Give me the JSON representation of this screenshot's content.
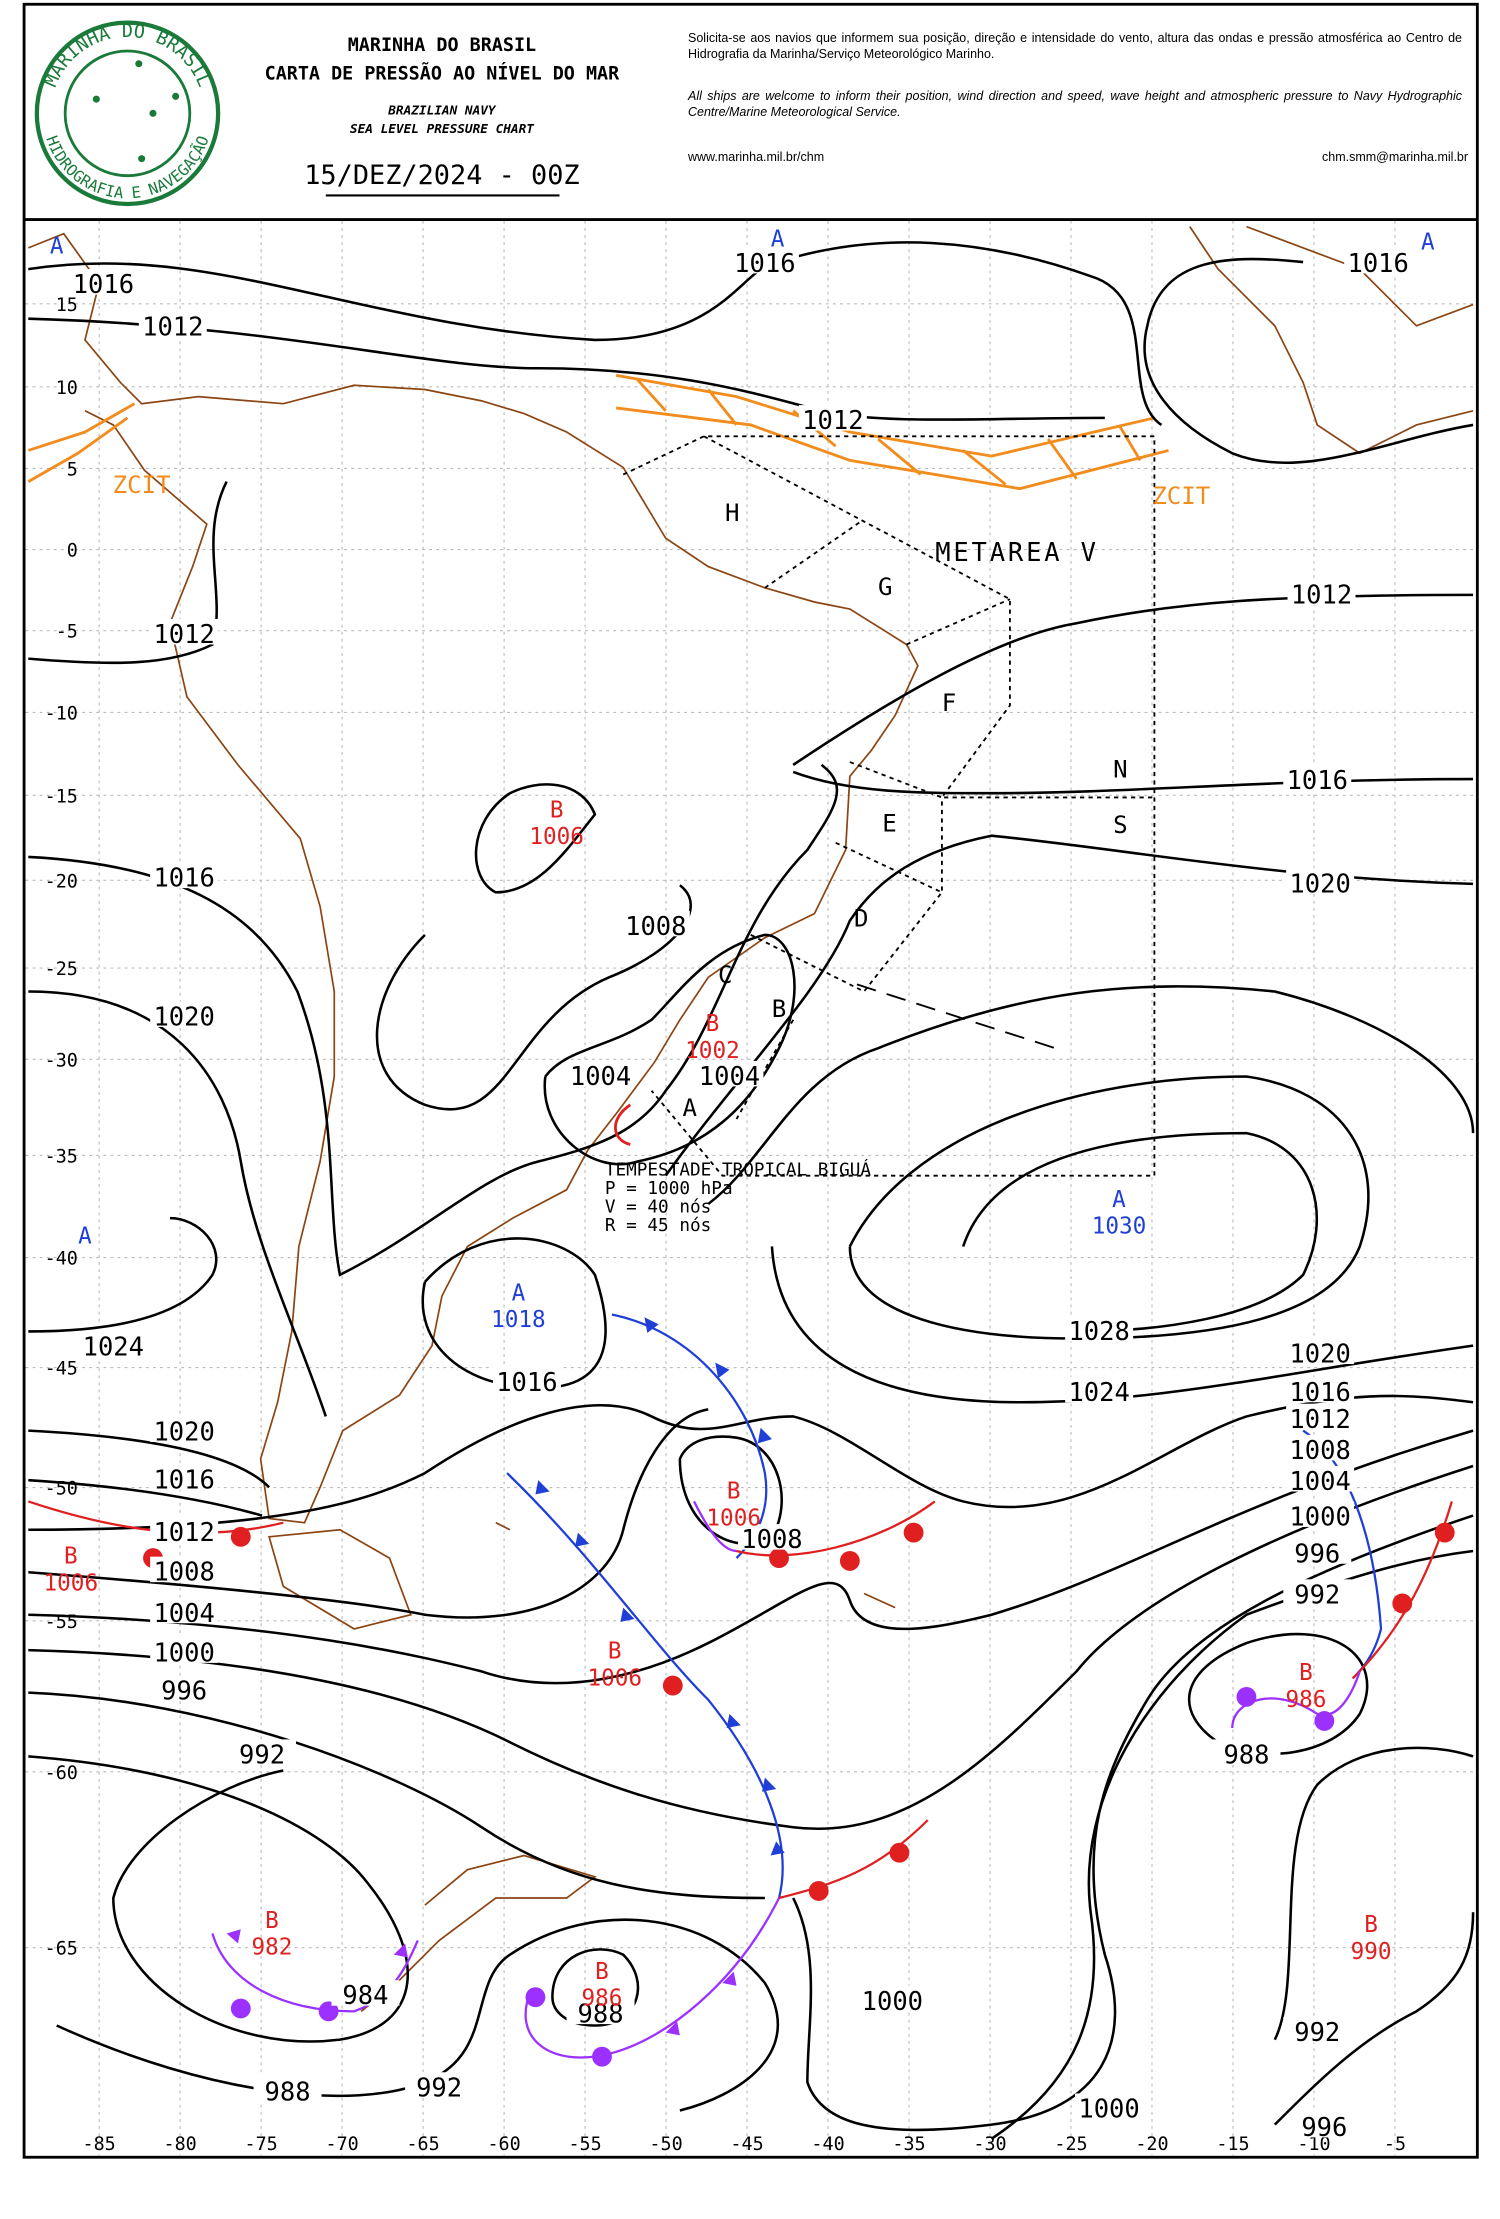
{
  "header": {
    "logo_top": "MARINHA DO BRASIL",
    "logo_bottom": "HIDROGRAFIA E NAVEGAÇÃO",
    "title_pt_1": "MARINHA DO BRASIL",
    "title_pt_2": "CARTA DE PRESSÃO AO NÍVEL DO MAR",
    "title_en_1": "BRAZILIAN NAVY",
    "title_en_2": "SEA LEVEL PRESSURE CHART",
    "date": "15/DEZ/2024 - 00Z",
    "note_pt": "Solicita-se aos navios que informem sua posição, direção e intensidade do vento, altura das ondas e pressão atmosférica ao Centro de Hidrografia da Marinha/Serviço Meteorológico Marinho.",
    "note_en": "All ships are welcome to inform their position, wind direction and speed, wave height and atmospheric pressure to Navy Hydrographic Centre/Marine Meteorological Service.",
    "website": "www.marinha.mil.br/chm",
    "email": "chm.smm@marinha.mil.br"
  },
  "map": {
    "lat_labels": [
      15,
      10,
      5,
      0,
      -5,
      -10,
      -15,
      -20,
      -25,
      -30,
      -35,
      -40,
      -45,
      -50,
      -55,
      -60,
      -65
    ],
    "lon_labels": [
      -85,
      -80,
      -75,
      -70,
      -65,
      -60,
      -55,
      -50,
      -45,
      -40,
      -35,
      -30,
      -25,
      -20,
      -15,
      -10,
      -5
    ],
    "isobar_labels": [
      1016,
      1012,
      1016,
      1016,
      1012,
      1012,
      1012,
      1016,
      1016,
      1020,
      1008,
      1020,
      1004,
      1004,
      1028,
      1024,
      1024,
      1016,
      1020,
      1016,
      1012,
      1008,
      1004,
      1000,
      996,
      992,
      1020,
      1016,
      1012,
      1008,
      1004,
      1000,
      996,
      992,
      1008,
      988,
      984,
      988,
      1000,
      992,
      988,
      992,
      1000,
      996
    ],
    "centers": [
      {
        "letter": "A"
      },
      {
        "letter": "A"
      },
      {
        "letter": "A"
      },
      {
        "letter": "B",
        "pressure": 1006
      },
      {
        "letter": "B",
        "pressure": 1002
      },
      {
        "letter": "A",
        "pressure": 1030
      },
      {
        "letter": "A"
      },
      {
        "letter": "A",
        "pressure": 1018
      },
      {
        "letter": "B",
        "pressure": 1006
      },
      {
        "letter": "B",
        "pressure": 1006
      },
      {
        "letter": "B",
        "pressure": 1006
      },
      {
        "letter": "B",
        "pressure": 986
      },
      {
        "letter": "B",
        "pressure": 982
      },
      {
        "letter": "B",
        "pressure": 986
      },
      {
        "letter": "B",
        "pressure": 990
      }
    ],
    "areas": [
      "H",
      "G",
      "F",
      "E",
      "D",
      "C",
      "B",
      "A",
      "N",
      "S"
    ],
    "metarea": "METAREA V",
    "itcz_labels": [
      "ZCIT",
      "ZCIT"
    ],
    "storm": {
      "name": "TEMPESTADE TROPICAL BIGUÁ",
      "pressure": "P = 1000 hPa",
      "wind": "V = 40 nós",
      "gust": "R = 45 nós"
    }
  }
}
